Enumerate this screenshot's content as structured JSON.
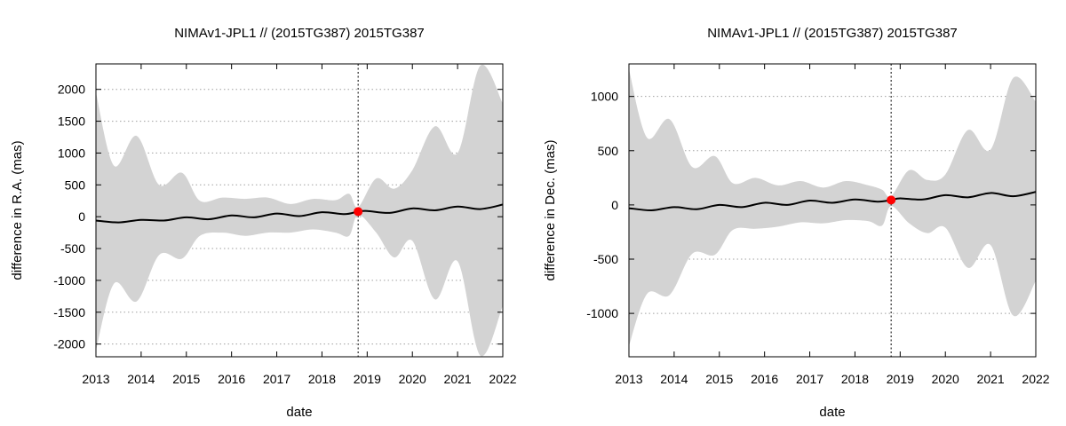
{
  "chart_data": [
    {
      "type": "line",
      "title": "NIMAv1-JPL1 // (2015TG387) 2015TG387",
      "xlabel": "date",
      "ylabel": "difference in R.A. (mas)",
      "xlim": [
        2013,
        2022
      ],
      "ylim": [
        -2200,
        2400
      ],
      "xticks": [
        "2013",
        "2014",
        "2015",
        "2016",
        "2017",
        "2018",
        "2019",
        "2020",
        "2021",
        "2022"
      ],
      "yticks": [
        -2000,
        -1500,
        -1000,
        -500,
        0,
        500,
        1000,
        1500,
        2000
      ],
      "grid": "dotted horizontal",
      "reference_line_x": 2018.8,
      "marker": {
        "x": 2018.8,
        "y": 80
      },
      "series": [
        {
          "role": "difference",
          "x": [
            2013.0,
            2013.5,
            2014.0,
            2014.5,
            2015.0,
            2015.5,
            2016.0,
            2016.5,
            2017.0,
            2017.5,
            2018.0,
            2018.5,
            2018.8,
            2019.0,
            2019.5,
            2020.0,
            2020.5,
            2021.0,
            2021.5,
            2022.0
          ],
          "y": [
            -60,
            -90,
            -50,
            -60,
            -10,
            -40,
            20,
            -10,
            50,
            10,
            70,
            40,
            80,
            90,
            60,
            130,
            100,
            160,
            120,
            190
          ]
        },
        {
          "role": "uncertainty upper bound",
          "x": [
            2013.0,
            2013.4,
            2013.9,
            2014.4,
            2014.9,
            2015.3,
            2015.8,
            2016.3,
            2016.8,
            2017.3,
            2017.8,
            2018.3,
            2018.6,
            2018.8,
            2019.2,
            2019.6,
            2020.0,
            2020.5,
            2021.0,
            2021.5,
            2022.0
          ],
          "y": [
            1950,
            800,
            1270,
            500,
            690,
            250,
            300,
            280,
            300,
            200,
            280,
            260,
            360,
            150,
            600,
            440,
            730,
            1420,
            1000,
            2370,
            1780
          ]
        },
        {
          "role": "uncertainty lower bound",
          "x": [
            2013.0,
            2013.4,
            2013.9,
            2014.4,
            2014.9,
            2015.3,
            2015.8,
            2016.3,
            2016.8,
            2017.3,
            2017.8,
            2018.3,
            2018.6,
            2018.8,
            2019.2,
            2019.6,
            2020.0,
            2020.5,
            2021.0,
            2021.5,
            2022.0
          ],
          "y": [
            -2100,
            -1050,
            -1330,
            -600,
            -660,
            -300,
            -250,
            -300,
            -250,
            -250,
            -200,
            -250,
            -300,
            30,
            -250,
            -640,
            -380,
            -1300,
            -700,
            -2180,
            -1400
          ]
        }
      ]
    },
    {
      "type": "line",
      "title": "NIMAv1-JPL1 // (2015TG387) 2015TG387",
      "xlabel": "date",
      "ylabel": "difference in Dec. (mas)",
      "xlim": [
        2013,
        2022
      ],
      "ylim": [
        -1400,
        1300
      ],
      "xticks": [
        "2013",
        "2014",
        "2015",
        "2016",
        "2017",
        "2018",
        "2019",
        "2020",
        "2021",
        "2022"
      ],
      "yticks": [
        -1000,
        -500,
        0,
        500,
        1000
      ],
      "grid": "dotted horizontal",
      "reference_line_x": 2018.8,
      "marker": {
        "x": 2018.8,
        "y": 45
      },
      "series": [
        {
          "role": "difference",
          "x": [
            2013.0,
            2013.5,
            2014.0,
            2014.5,
            2015.0,
            2015.5,
            2016.0,
            2016.5,
            2017.0,
            2017.5,
            2018.0,
            2018.5,
            2018.8,
            2019.0,
            2019.5,
            2020.0,
            2020.5,
            2021.0,
            2021.5,
            2022.0
          ],
          "y": [
            -30,
            -50,
            -20,
            -40,
            0,
            -20,
            20,
            0,
            40,
            20,
            50,
            30,
            45,
            60,
            50,
            90,
            70,
            110,
            80,
            120
          ]
        },
        {
          "role": "uncertainty upper bound",
          "x": [
            2013.0,
            2013.4,
            2013.9,
            2014.4,
            2014.9,
            2015.3,
            2015.8,
            2016.3,
            2016.8,
            2017.3,
            2017.8,
            2018.3,
            2018.6,
            2018.8,
            2019.2,
            2019.6,
            2020.0,
            2020.5,
            2021.0,
            2021.5,
            2022.0
          ],
          "y": [
            1250,
            620,
            790,
            350,
            450,
            200,
            250,
            180,
            220,
            160,
            220,
            180,
            140,
            80,
            320,
            230,
            280,
            690,
            510,
            1170,
            950
          ]
        },
        {
          "role": "uncertainty lower bound",
          "x": [
            2013.0,
            2013.4,
            2013.9,
            2014.4,
            2014.9,
            2015.3,
            2015.8,
            2016.3,
            2016.8,
            2017.3,
            2017.8,
            2018.3,
            2018.6,
            2018.8,
            2019.2,
            2019.6,
            2020.0,
            2020.5,
            2021.0,
            2021.5,
            2022.0
          ],
          "y": [
            -1300,
            -820,
            -830,
            -450,
            -460,
            -230,
            -220,
            -200,
            -160,
            -170,
            -140,
            -150,
            -190,
            -10,
            -170,
            -260,
            -210,
            -580,
            -370,
            -1020,
            -700
          ]
        }
      ]
    }
  ],
  "colors": {
    "band": "#d3d3d3",
    "line": "#000000",
    "marker": "#ff0000",
    "grid": "#a0a0a0"
  }
}
